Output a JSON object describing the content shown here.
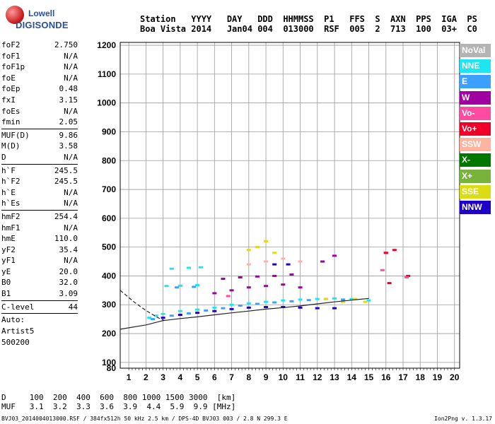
{
  "logo": {
    "line1": "Lowell",
    "line2": "DIGISONDE"
  },
  "header": {
    "labels": [
      "Station",
      "YYYY",
      "DAY",
      "DDD",
      "HHMMSS",
      "P1",
      "FFS",
      "S",
      "AXN",
      "PPS",
      "IGA",
      "PS"
    ],
    "values": [
      "Boa Vista",
      "2014",
      "Jan04",
      "004",
      "013000",
      "RSF",
      "005",
      "2",
      "713",
      "100",
      "03+",
      "C0"
    ]
  },
  "params": {
    "g1": [
      {
        "k": "foF2",
        "v": "2.750"
      },
      {
        "k": "foF1",
        "v": "N/A"
      },
      {
        "k": "foF1p",
        "v": "N/A"
      },
      {
        "k": "foE",
        "v": "N/A"
      },
      {
        "k": "foEp",
        "v": "0.48"
      },
      {
        "k": "fxI",
        "v": "3.15"
      },
      {
        "k": "foEs",
        "v": "N/A"
      },
      {
        "k": "fmin",
        "v": "2.05"
      }
    ],
    "g2": [
      {
        "k": "MUF(D)",
        "v": "9.86"
      },
      {
        "k": "M(D)",
        "v": "3.58"
      },
      {
        "k": "D",
        "v": "N/A"
      }
    ],
    "g3": [
      {
        "k": "h`F",
        "v": "245.5"
      },
      {
        "k": "h`F2",
        "v": "245.5"
      },
      {
        "k": "h`E",
        "v": "N/A"
      },
      {
        "k": "h`Es",
        "v": "N/A"
      }
    ],
    "g4": [
      {
        "k": "hmF2",
        "v": "254.4"
      },
      {
        "k": "hmF1",
        "v": "N/A"
      },
      {
        "k": "hmE",
        "v": "110.0"
      },
      {
        "k": "yF2",
        "v": "35.4"
      },
      {
        "k": "yF1",
        "v": "N/A"
      },
      {
        "k": "yE",
        "v": "20.0"
      },
      {
        "k": "B0",
        "v": "32.0"
      },
      {
        "k": "B1",
        "v": "3.09"
      }
    ],
    "clevel": {
      "k": "C-level",
      "v": "44"
    },
    "auto": [
      "Auto:",
      "Artist5",
      "500200"
    ]
  },
  "legend": [
    {
      "name": "NoVal",
      "color": "#b4b4b4"
    },
    {
      "name": "NNE",
      "color": "#1ee6f0"
    },
    {
      "name": "E",
      "color": "#3ca0ff"
    },
    {
      "name": "W",
      "color": "#a000a0"
    },
    {
      "name": "Vo-",
      "color": "#ff4ba0"
    },
    {
      "name": "Vo+",
      "color": "#f00028"
    },
    {
      "name": "SSW",
      "color": "#ffb4a0"
    },
    {
      "name": "X-",
      "color": "#007800"
    },
    {
      "name": "X+",
      "color": "#78b43c"
    },
    {
      "name": "SSE",
      "color": "#dcdc14"
    },
    {
      "name": "NNW",
      "color": "#1e00c8"
    }
  ],
  "chart_data": {
    "type": "scatter",
    "xlim": [
      0.5,
      20.3
    ],
    "ylim": [
      80,
      1210
    ],
    "x_ticks": [
      1,
      2,
      3,
      4,
      5,
      6,
      7,
      8,
      9,
      10,
      11,
      12,
      13,
      14,
      15,
      16,
      17,
      18,
      19,
      20
    ],
    "y_ticks": [
      80,
      100,
      200,
      300,
      400,
      500,
      600,
      700,
      800,
      900,
      1000,
      1100,
      1200
    ],
    "grid": true,
    "series": [
      {
        "name": "NNE",
        "points": [
          [
            2.2,
            255
          ],
          [
            2.6,
            262
          ],
          [
            3,
            268
          ],
          [
            4,
            278
          ],
          [
            5,
            283
          ],
          [
            6,
            290
          ],
          [
            7,
            300
          ],
          [
            8,
            305
          ],
          [
            9,
            310
          ],
          [
            10,
            315
          ],
          [
            11,
            318
          ],
          [
            12,
            320
          ],
          [
            13,
            322
          ],
          [
            14,
            320
          ],
          [
            15,
            315
          ],
          [
            3.5,
            425
          ],
          [
            4.5,
            428
          ],
          [
            5.2,
            430
          ],
          [
            3.2,
            365
          ],
          [
            4,
            366
          ],
          [
            5,
            368
          ]
        ]
      },
      {
        "name": "E",
        "points": [
          [
            2.4,
            250
          ],
          [
            3.5,
            262
          ],
          [
            4.5,
            270
          ],
          [
            5.5,
            280
          ],
          [
            6.5,
            288
          ],
          [
            7.5,
            297
          ],
          [
            8.5,
            303
          ],
          [
            9.5,
            308
          ],
          [
            10.5,
            312
          ],
          [
            11.5,
            316
          ],
          [
            12.5,
            320
          ],
          [
            13.5,
            318
          ],
          [
            3.8,
            360
          ],
          [
            4.8,
            362
          ]
        ]
      },
      {
        "name": "W",
        "points": [
          [
            6,
            340
          ],
          [
            7,
            350
          ],
          [
            8,
            360
          ],
          [
            9,
            365
          ],
          [
            10,
            370
          ],
          [
            11,
            360
          ],
          [
            6.5,
            390
          ],
          [
            7.5,
            395
          ],
          [
            8.5,
            398
          ],
          [
            9.5,
            400
          ],
          [
            10.5,
            405
          ],
          [
            12.3,
            450
          ],
          [
            13,
            470
          ],
          [
            16,
            480
          ]
        ]
      },
      {
        "name": "NNW",
        "points": [
          [
            3,
            255
          ],
          [
            4,
            265
          ],
          [
            5,
            272
          ],
          [
            6,
            278
          ],
          [
            7,
            285
          ],
          [
            8,
            290
          ],
          [
            9,
            292
          ],
          [
            10,
            292
          ],
          [
            11,
            290
          ],
          [
            12,
            288
          ],
          [
            13,
            288
          ],
          [
            10.3,
            440
          ],
          [
            9.5,
            440
          ]
        ]
      },
      {
        "name": "SSE",
        "points": [
          [
            8,
            490
          ],
          [
            8.5,
            500
          ],
          [
            9,
            520
          ],
          [
            9.5,
            480
          ],
          [
            12.5,
            320
          ],
          [
            13.5,
            310
          ],
          [
            14.2,
            320
          ],
          [
            14.8,
            310
          ]
        ]
      },
      {
        "name": "SSW",
        "points": [
          [
            8,
            440
          ],
          [
            9,
            450
          ],
          [
            10,
            460
          ],
          [
            11,
            450
          ]
        ]
      },
      {
        "name": "Vo+",
        "points": [
          [
            16,
            480
          ],
          [
            16.5,
            490
          ],
          [
            17.3,
            400
          ],
          [
            16.2,
            375
          ]
        ]
      },
      {
        "name": "Vo-",
        "points": [
          [
            15.8,
            420
          ],
          [
            17.2,
            395
          ],
          [
            6.8,
            330
          ]
        ]
      }
    ],
    "trace": {
      "solid": [
        [
          0.5,
          215
        ],
        [
          2,
          230
        ],
        [
          3,
          245
        ],
        [
          4,
          252
        ],
        [
          5,
          258
        ],
        [
          6,
          265
        ],
        [
          7,
          272
        ],
        [
          8,
          278
        ],
        [
          9,
          285
        ],
        [
          10,
          290
        ],
        [
          11,
          296
        ],
        [
          12,
          303
        ],
        [
          13,
          310
        ],
        [
          14,
          316
        ],
        [
          15,
          322
        ]
      ],
      "dashed": [
        [
          0.5,
          350
        ],
        [
          1.3,
          310
        ],
        [
          2,
          280
        ],
        [
          2.7,
          255
        ],
        [
          3.1,
          245
        ]
      ]
    }
  },
  "bottom": {
    "d_label": "D",
    "d_values": [
      "100",
      "200",
      "400",
      "600",
      "800",
      "1000",
      "1500",
      "3000",
      "[km]"
    ],
    "muf_label": "MUF",
    "muf_values": [
      "3.1",
      "3.2",
      "3.3",
      "3.6",
      "3.9",
      "4.4",
      "5.9",
      "9.9",
      "[MHz]"
    ]
  },
  "footer": "BVJ03_2014004013000.RSF / 384fx512h 50 kHz 2.5 km / DPS-4D BVJ03 003 / 2.8 N 299.3 E",
  "version": "Ion2Png v. 1.3.17"
}
